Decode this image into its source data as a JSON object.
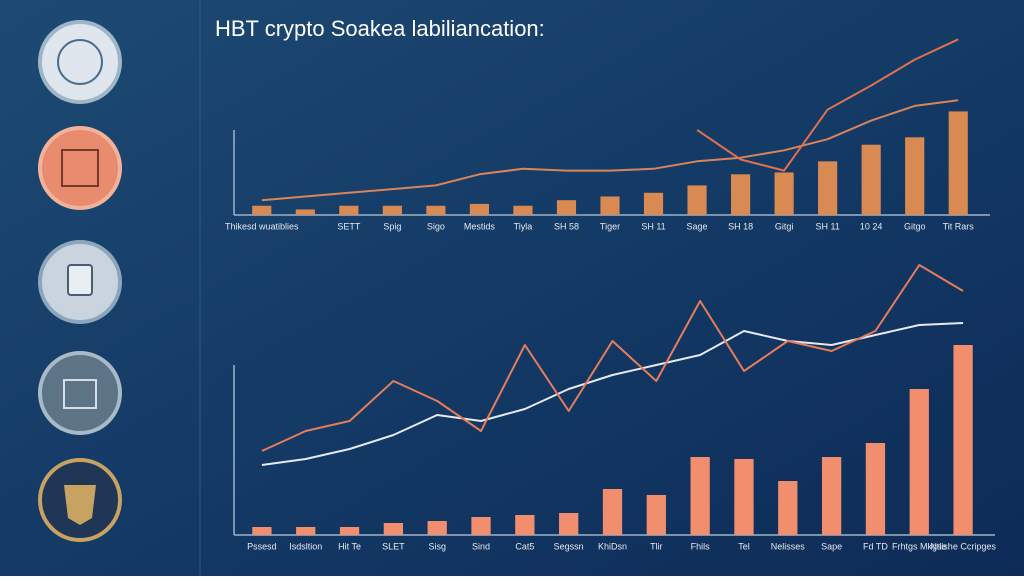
{
  "chart_data": [
    {
      "type": "combo",
      "title": "HBT crypto Soakea labiliancation:",
      "categories": [
        "Thikesd wuatiblies",
        null,
        "SETT",
        "Spig",
        "Sigo",
        "Mestids",
        "Tiyla",
        "SH 58",
        "Tiger",
        "SH 11",
        "Sage",
        "SH 18",
        "Gitgi",
        "SH 11",
        "10 24",
        "Gitgo",
        "Tit Rars"
      ],
      "ylim": [
        0,
        100
      ],
      "series": [
        {
          "type": "bar",
          "color": "#d98a52",
          "values": [
            5,
            3,
            5,
            5,
            5,
            6,
            5,
            8,
            10,
            12,
            16,
            22,
            23,
            29,
            38,
            42,
            56
          ]
        },
        {
          "type": "line",
          "color": "#d9845a",
          "values": [
            8,
            10,
            12,
            14,
            16,
            22,
            25,
            24,
            24,
            25,
            29,
            31,
            35,
            41,
            51,
            59,
            62
          ]
        },
        {
          "type": "line",
          "color": "#e0714f",
          "values": [
            null,
            null,
            null,
            null,
            null,
            null,
            null,
            null,
            null,
            null,
            46,
            30,
            24,
            57,
            70,
            84,
            95
          ]
        }
      ]
    },
    {
      "type": "combo",
      "categories": [
        "Pssesd",
        "Isdsltion",
        "Hit Te",
        "SLET",
        "Sisg",
        "Sind",
        "Cat5",
        "Segssn",
        "KhiDsn",
        "Tlir",
        "Fhils",
        "Tel",
        "Nelisses",
        "Sape",
        "Fd TD",
        "Frhtgs Mkgse",
        "Ntlishe Ccripges"
      ],
      "ylim": [
        0,
        140
      ],
      "series": [
        {
          "type": "bar",
          "color": "#f08e6e",
          "values": [
            4,
            4,
            4,
            6,
            7,
            9,
            10,
            11,
            23,
            20,
            39,
            38,
            27,
            39,
            46,
            73,
            95
          ]
        },
        {
          "type": "line",
          "color": "#e6e9f2",
          "values": [
            35,
            38,
            43,
            50,
            60,
            57,
            63,
            73,
            80,
            85,
            90,
            102,
            97,
            95,
            100,
            105,
            106
          ]
        },
        {
          "type": "line",
          "color": "#e57d5c",
          "values": [
            42,
            52,
            57,
            77,
            67,
            52,
            95,
            62,
            97,
            77,
            117,
            82,
            97,
            92,
            102,
            135,
            122
          ]
        }
      ]
    }
  ]
}
